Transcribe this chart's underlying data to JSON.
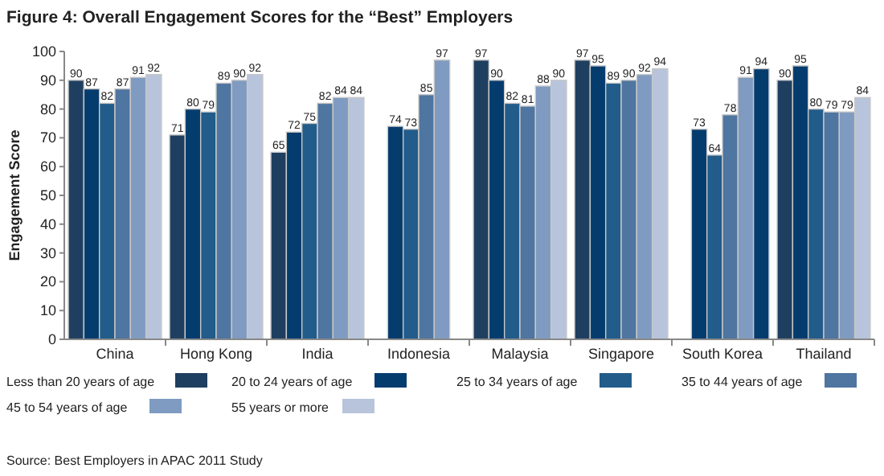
{
  "chart_data": {
    "type": "bar",
    "title": "Figure 4: Overall Engagement Scores for the “Best” Employers",
    "ylabel": "Engagement Score",
    "annotations": [
      "Source: Best Employers in APAC 2011 Study"
    ],
    "categories": [
      "China",
      "Hong Kong",
      "India",
      "Indonesia",
      "Malaysia",
      "Singapore",
      "South Korea",
      "Thailand"
    ],
    "series": [
      {
        "name": "Less than 20 years of age",
        "color": "#1f3f60",
        "values": [
          90,
          71,
          65,
          null,
          97,
          97,
          null,
          90
        ]
      },
      {
        "name": "20 to 24 years of age",
        "color": "#053c6e",
        "values": [
          87,
          80,
          72,
          74,
          90,
          95,
          73,
          95
        ]
      },
      {
        "name": "25 to 34 years of age",
        "color": "#215c8a",
        "values": [
          82,
          79,
          75,
          73,
          82,
          89,
          64,
          80
        ]
      },
      {
        "name": "35 to 44 years of age",
        "color": "#4f75a1",
        "values": [
          87,
          89,
          82,
          85,
          81,
          90,
          78,
          79
        ]
      },
      {
        "name": "45 to 54 years of age",
        "color": "#7f9bc1",
        "values": [
          91,
          90,
          84,
          97,
          88,
          92,
          91,
          79
        ]
      },
      {
        "name": "55 years or more",
        "color": "#b7c4db",
        "values": [
          92,
          92,
          84,
          null,
          90,
          94,
          94,
          84
        ],
        "colors": [
          "#b7c4db",
          "#b7c4db",
          "#b7c4db",
          null,
          "#b7c4db",
          "#b7c4db",
          "#053c6e",
          "#b7c4db"
        ]
      }
    ],
    "ylim": [
      0,
      100
    ],
    "yticks": [
      0,
      10,
      20,
      30,
      40,
      50,
      60,
      70,
      80,
      90,
      100
    ],
    "grid": false,
    "legend": "bottom",
    "data_labels": true
  }
}
